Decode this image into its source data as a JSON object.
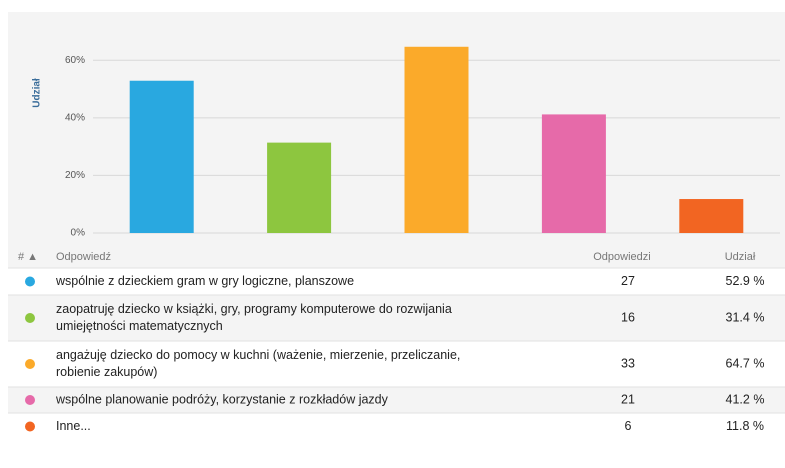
{
  "chart_data": {
    "type": "bar",
    "y_label": "Udział",
    "categories": [
      null,
      null,
      null,
      null,
      null
    ],
    "values": [
      52.9,
      31.4,
      64.7,
      41.2,
      11.8
    ],
    "colors": [
      "#29a8e0",
      "#8dc63f",
      "#fbaa2a",
      "#e66aa9",
      "#f26522"
    ],
    "ylim": [
      0,
      74
    ],
    "yticks": [
      {
        "value": 0,
        "label": "0%"
      },
      {
        "value": 20,
        "label": "20%"
      },
      {
        "value": 40,
        "label": "40%"
      },
      {
        "value": 60,
        "label": "60%"
      }
    ],
    "grid": true
  },
  "table": {
    "header": [
      "# ▲",
      "Odpowiedź",
      "Odpowiedzi",
      "Udział"
    ],
    "rows": [
      [
        "wspólnie z dzieckiem gram w gry logiczne, planszowe",
        "27",
        "52.9 %"
      ],
      [
        "zaopatruję dziecko w książki, gry, programy komputerowe do rozwijania umiejętności matematycznych",
        "16",
        "31.4 %"
      ],
      [
        "angażuję dziecko do pomocy w kuchni (ważenie, mierzenie, przeliczanie, robienie zakupów)",
        "33",
        "64.7 %"
      ],
      [
        "wspólne planowanie podróży, korzystanie z rozkładów jazdy",
        "21",
        "41.2 %"
      ],
      [
        "Inne...",
        "6",
        "11.8 %"
      ]
    ]
  }
}
